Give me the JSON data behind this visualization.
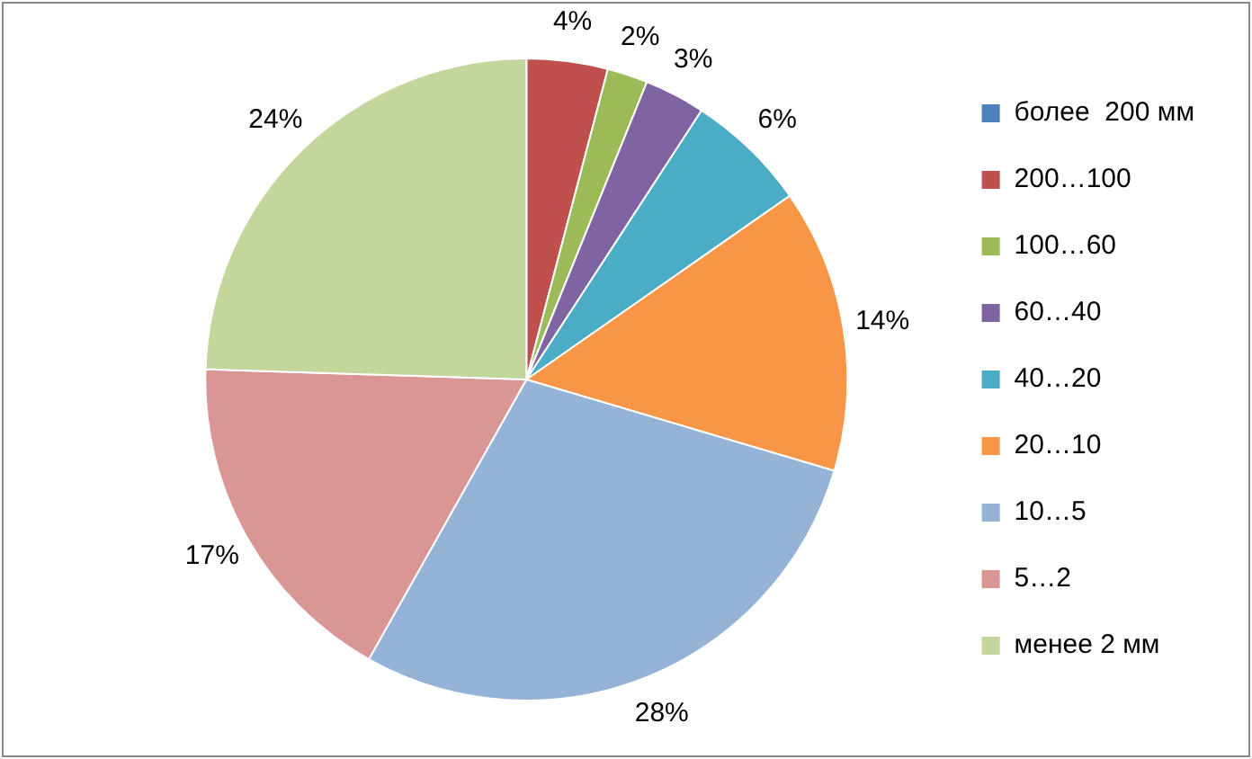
{
  "chart_data": {
    "type": "pie",
    "categories": [
      "более  200 мм",
      "200…100",
      "100…60",
      "60…40",
      "40…20",
      "20…10",
      "10…5",
      "5…2",
      "менее 2 мм"
    ],
    "values": [
      null,
      4,
      2,
      3,
      6,
      14,
      28,
      17,
      24
    ],
    "value_labels": [
      null,
      "4%",
      "2%",
      "3%",
      "6%",
      "14%",
      "28%",
      "17%",
      "24%"
    ],
    "colors": [
      "#4f81bd",
      "#c0504d",
      "#9bbb59",
      "#8064a2",
      "#4bacc6",
      "#f79646",
      "#95b3d7",
      "#d99694",
      "#c3d69b"
    ],
    "legend": "right"
  }
}
